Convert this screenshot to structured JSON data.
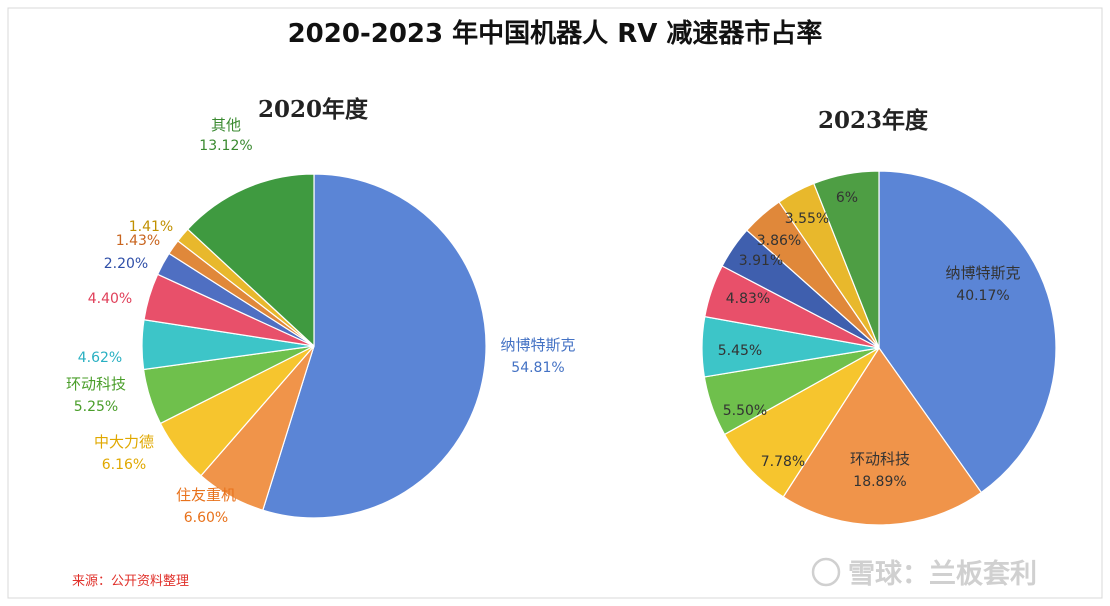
{
  "title": "2020-2023 年中国机器人 RV 减速器市占率",
  "source_note": "来源：公开资料整理",
  "watermark": "雪球：兰板套利",
  "chart_data": [
    {
      "type": "pie",
      "title": "2020年度",
      "slices": [
        {
          "name": "纳博特斯克",
          "value": 54.81,
          "label": "54.81%",
          "color": "#5b85d6",
          "label_color": "#4472c4"
        },
        {
          "name": "住友重机",
          "value": 6.6,
          "label": "6.60%",
          "color": "#f0944a",
          "label_color": "#e8721c"
        },
        {
          "name": "中大力德",
          "value": 6.16,
          "label": "6.16%",
          "color": "#f6c52e",
          "label_color": "#e0a800"
        },
        {
          "name": "环动科技",
          "value": 5.25,
          "label": "5.25%",
          "color": "#6fc04c",
          "label_color": "#4a9e2a"
        },
        {
          "name": "",
          "value": 4.62,
          "label": "4.62%",
          "color": "#3dc5c8",
          "label_color": "#29b0c2"
        },
        {
          "name": "",
          "value": 4.4,
          "label": "4.40%",
          "color": "#e8506a",
          "label_color": "#e0405a"
        },
        {
          "name": "",
          "value": 2.2,
          "label": "2.20%",
          "color": "#4f6fc2",
          "label_color": "#2f4fa8"
        },
        {
          "name": "",
          "value": 1.43,
          "label": "1.43%",
          "color": "#e0883a",
          "label_color": "#c8641e"
        },
        {
          "name": "",
          "value": 1.41,
          "label": "1.41%",
          "color": "#e8b82c",
          "label_color": "#c09000"
        },
        {
          "name": "其他",
          "value": 13.12,
          "label": "13.12%",
          "color": "#3f9a40",
          "label_color": "#3a8a30"
        }
      ]
    },
    {
      "type": "pie",
      "title": "2023年度",
      "slices": [
        {
          "name": "纳博特斯克",
          "value": 40.17,
          "label": "40.17%",
          "color": "#5b85d6",
          "label_color": "#333333"
        },
        {
          "name": "环动科技",
          "value": 18.89,
          "label": "18.89%",
          "color": "#f0944a",
          "label_color": "#333333"
        },
        {
          "name": "",
          "value": 7.78,
          "label": "7.78%",
          "color": "#f6c52e",
          "label_color": "#333333"
        },
        {
          "name": "",
          "value": 5.5,
          "label": "5.50%",
          "color": "#6fc04c",
          "label_color": "#333333"
        },
        {
          "name": "",
          "value": 5.45,
          "label": "5.45%",
          "color": "#3dc5c8",
          "label_color": "#333333"
        },
        {
          "name": "",
          "value": 4.83,
          "label": "4.83%",
          "color": "#e8506a",
          "label_color": "#333333"
        },
        {
          "name": "",
          "value": 3.91,
          "label": "3.91%",
          "color": "#3f5fae",
          "label_color": "#333333"
        },
        {
          "name": "",
          "value": 3.86,
          "label": "3.86%",
          "color": "#e0883a",
          "label_color": "#333333"
        },
        {
          "name": "",
          "value": 3.55,
          "label": "3.55%",
          "color": "#e8b82c",
          "label_color": "#333333"
        },
        {
          "name": "",
          "value": 6,
          "label": "6%",
          "color": "#4e9e44",
          "label_color": "#333333"
        }
      ]
    }
  ]
}
